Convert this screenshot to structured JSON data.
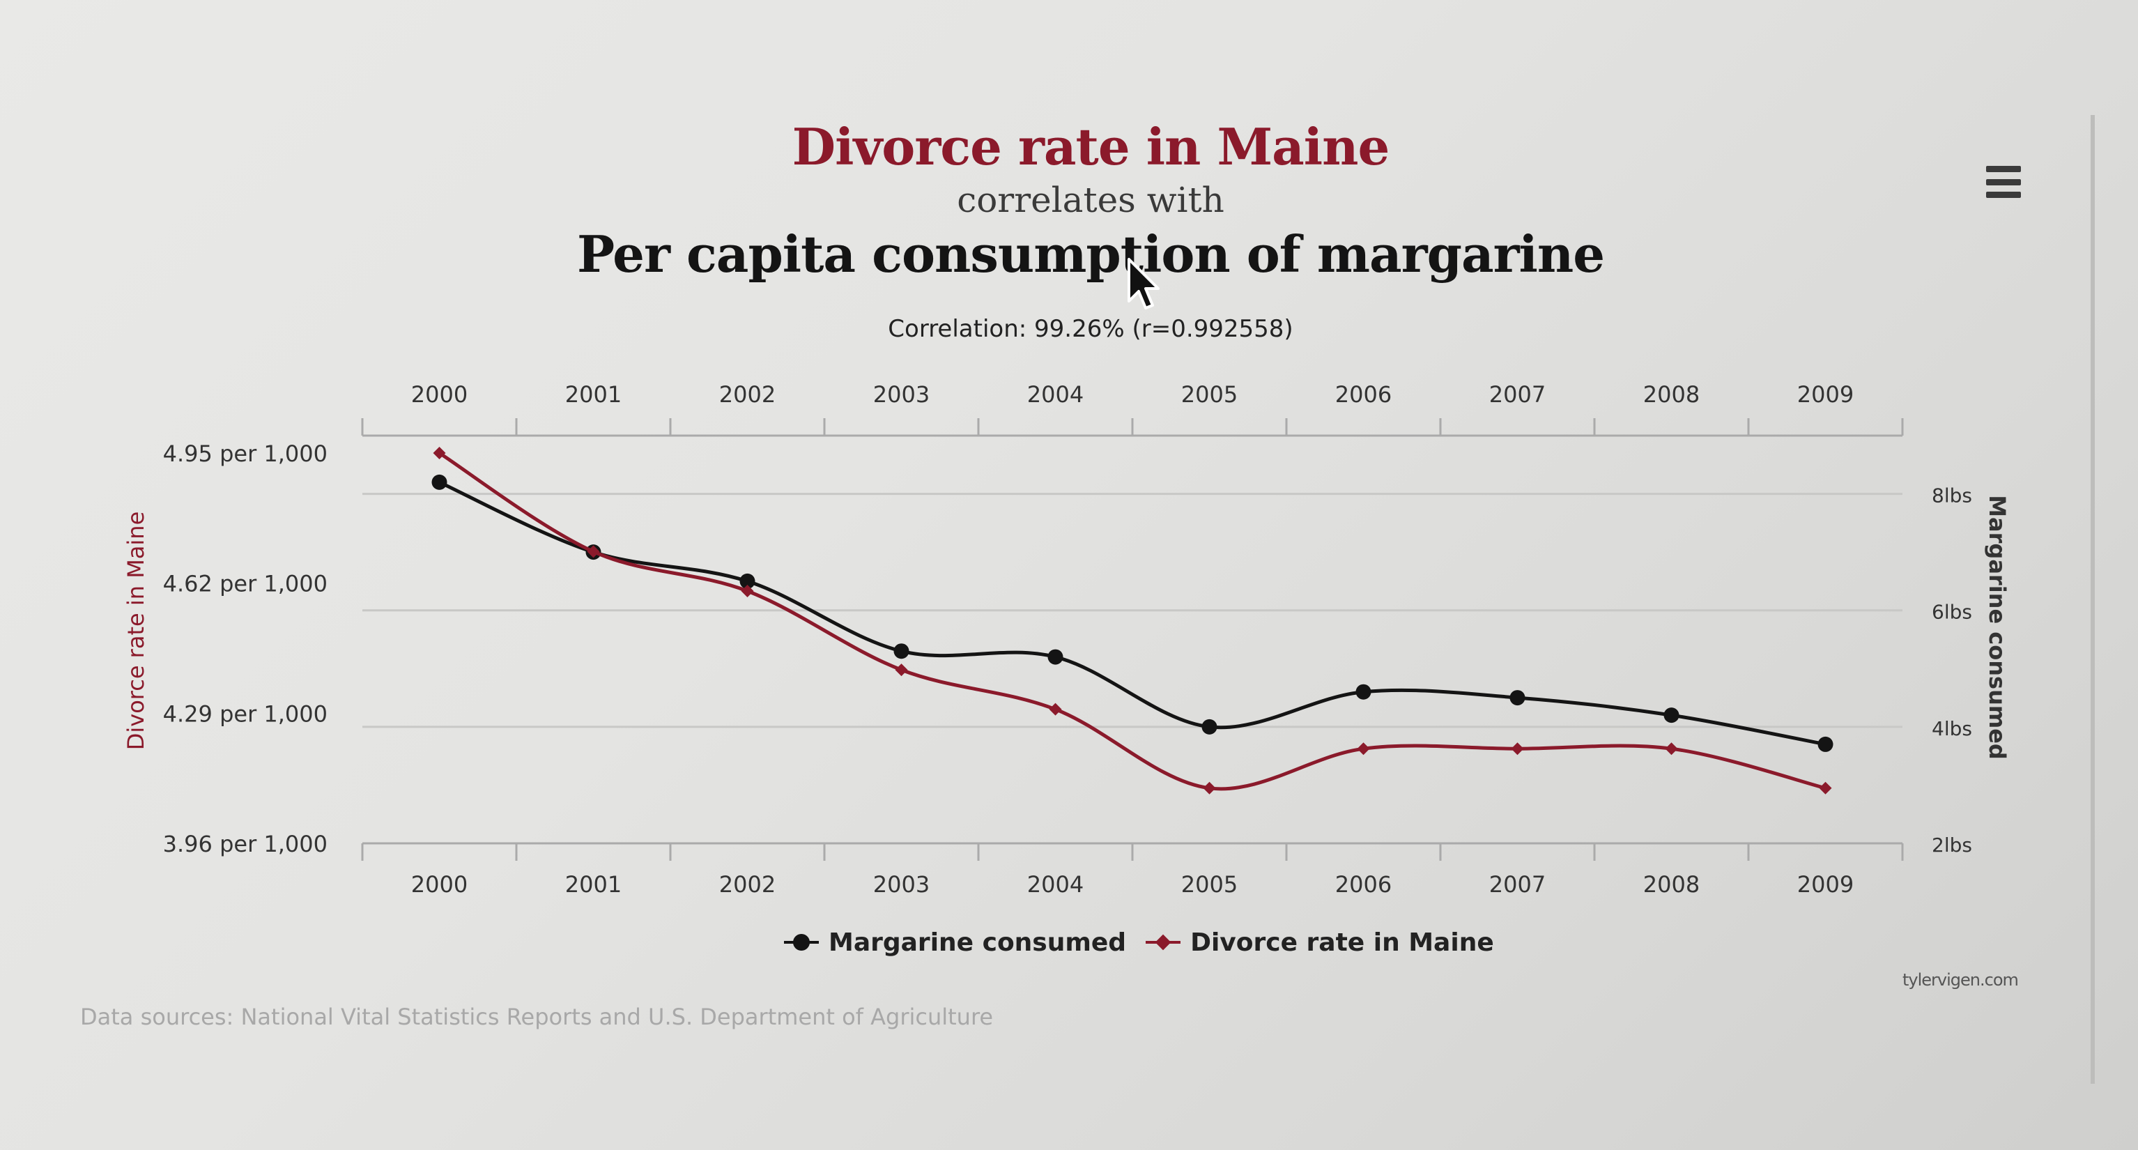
{
  "header": {
    "title": "Divorce rate in Maine",
    "subtitle": "correlates with",
    "second_title": "Per capita consumption of margarine",
    "correlation": "Correlation: 99.26% (r=0.992558)"
  },
  "menu": {
    "icon": "hamburger-menu-icon"
  },
  "legend": {
    "margarine_label": "Margarine consumed",
    "divorce_label": "Divorce rate in Maine"
  },
  "footer": {
    "credit": "tylervigen.com",
    "sources": "Data sources: National Vital Statistics Reports and U.S. Department of Agriculture"
  },
  "colors": {
    "divorce": "#8b1a2b",
    "margarine": "#141414",
    "grid": "#c8c8c6"
  },
  "chart_data": {
    "type": "line",
    "title": "Divorce rate in Maine",
    "subtitle": "correlates with",
    "second_title": "Per capita consumption of margarine",
    "categories": [
      "2000",
      "2001",
      "2002",
      "2003",
      "2004",
      "2005",
      "2006",
      "2007",
      "2008",
      "2009"
    ],
    "left_axis": {
      "label": "Divorce rate in Maine",
      "ticks": [
        {
          "value": 4.95,
          "label": "4.95 per 1,000"
        },
        {
          "value": 4.62,
          "label": "4.62 per 1,000"
        },
        {
          "value": 4.29,
          "label": "4.29 per 1,000"
        },
        {
          "value": 3.96,
          "label": "3.96 per 1,000"
        }
      ],
      "ylim": [
        3.96,
        4.95
      ]
    },
    "right_axis": {
      "label": "Margarine consumed",
      "ticks": [
        {
          "value": 8,
          "label": "8lbs"
        },
        {
          "value": 6,
          "label": "6lbs"
        },
        {
          "value": 4,
          "label": "4lbs"
        },
        {
          "value": 2,
          "label": "2lbs"
        }
      ],
      "ylim": [
        2,
        9
      ]
    },
    "series": [
      {
        "name": "Margarine consumed",
        "axis": "right",
        "marker": "circle",
        "color": "#141414",
        "values": [
          8.2,
          7.0,
          6.5,
          5.3,
          5.2,
          4.0,
          4.6,
          4.5,
          4.2,
          3.7
        ]
      },
      {
        "name": "Divorce rate in Maine",
        "axis": "left",
        "marker": "diamond",
        "color": "#8b1a2b",
        "values": [
          4.95,
          4.7,
          4.6,
          4.4,
          4.3,
          4.1,
          4.2,
          4.2,
          4.2,
          4.1
        ]
      }
    ],
    "grid": true,
    "legend_position": "bottom-center"
  }
}
